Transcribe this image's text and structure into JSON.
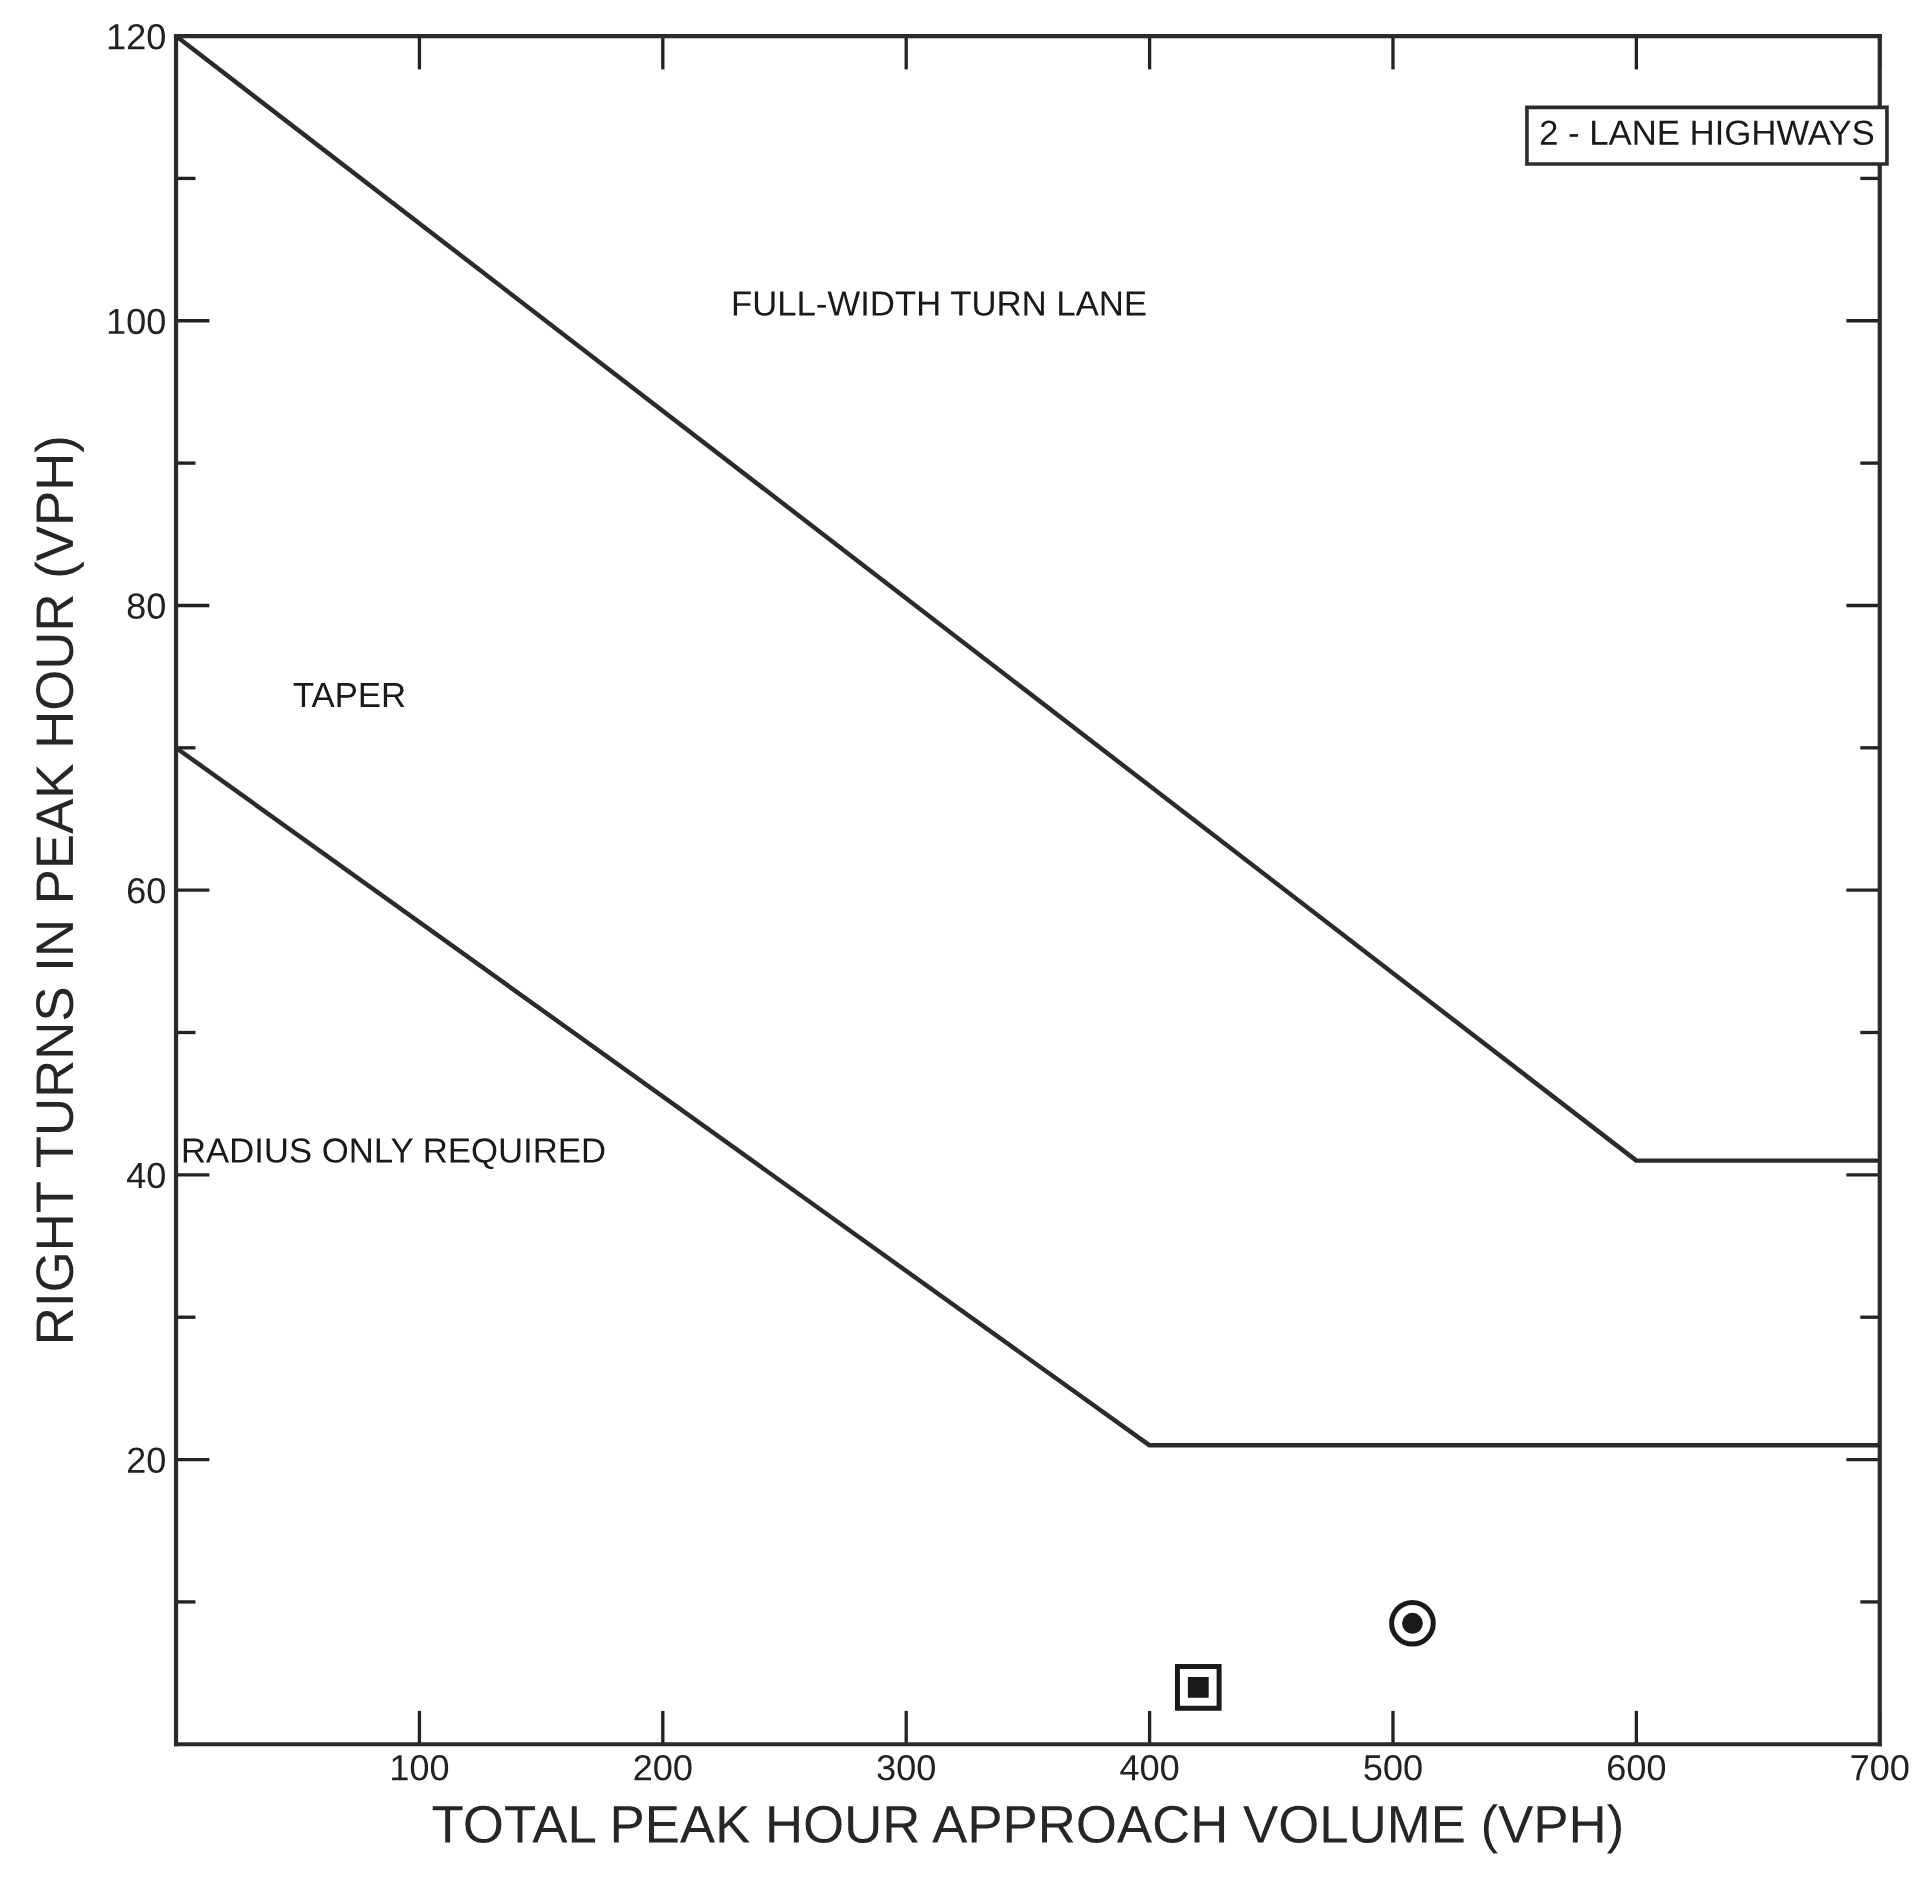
{
  "chart_data": {
    "type": "line",
    "xlabel": "TOTAL PEAK HOUR APPROACH VOLUME (VPH)",
    "ylabel": "RIGHT TURNS IN PEAK HOUR (VPH)",
    "series": [
      {
        "type": "line",
        "color": "#2b2b2b",
        "x": [
          0,
          600,
          700
        ],
        "values": [
          120,
          41,
          41
        ]
      },
      {
        "type": "line",
        "color": "#2b2b2b",
        "x": [
          0,
          400,
          700
        ],
        "values": [
          70,
          21,
          21
        ]
      },
      {
        "type": "scatter",
        "marker": "square",
        "color": "#1a1a1a",
        "x": [
          420
        ],
        "values": [
          4
        ]
      },
      {
        "type": "scatter",
        "marker": "circle",
        "color": "#1a1a1a",
        "x": [
          508
        ],
        "values": [
          8.5
        ]
      }
    ],
    "annotations": [
      "2 - LANE HIGHWAYS",
      "FULL-WIDTH TURN LANE",
      "TAPER",
      "RADIUS ONLY REQUIRED"
    ],
    "xlim": [
      0,
      700
    ],
    "ylim": [
      0,
      120
    ],
    "xticks": [
      100,
      200,
      300,
      400,
      500,
      600,
      700
    ],
    "yticks": [
      {
        "value": 10,
        "label": null
      },
      20,
      {
        "value": 30,
        "label": null
      },
      40,
      {
        "value": 50,
        "label": null
      },
      60,
      {
        "value": 70,
        "label": null
      },
      80,
      {
        "value": 90,
        "label": null
      },
      100,
      {
        "value": 110,
        "label": null
      },
      120
    ],
    "grid": false,
    "legend": false
  }
}
